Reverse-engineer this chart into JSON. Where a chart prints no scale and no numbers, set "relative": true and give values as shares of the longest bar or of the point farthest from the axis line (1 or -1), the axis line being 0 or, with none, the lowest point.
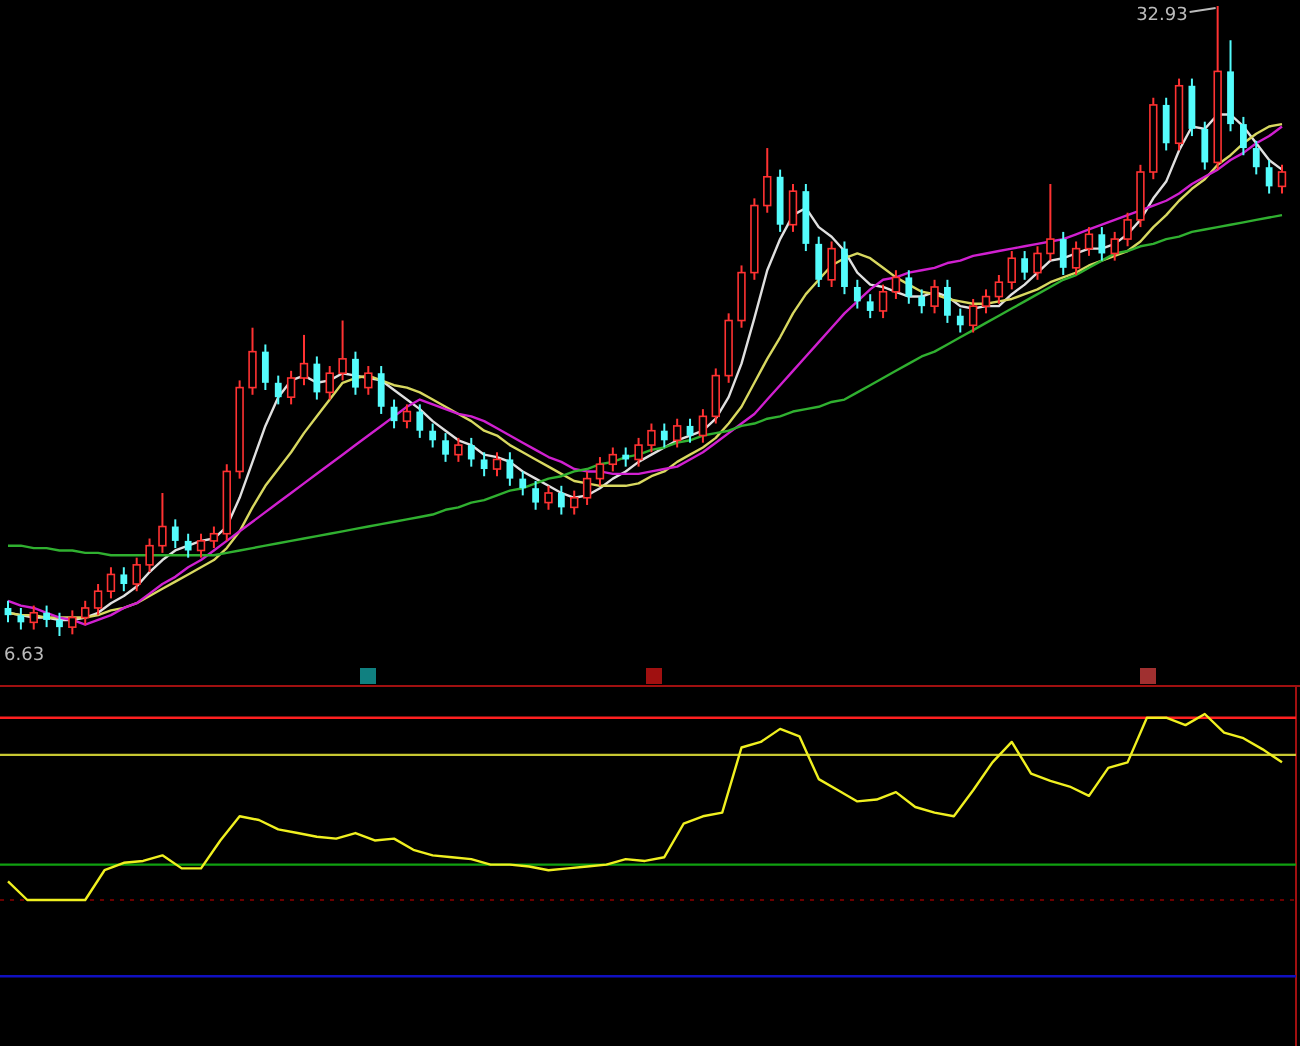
{
  "chart_data": [
    {
      "type": "candlestick",
      "categories": [
        null,
        null,
        null,
        null,
        null,
        null,
        null,
        null,
        null,
        null,
        null,
        null,
        null,
        null,
        null,
        null,
        null,
        null,
        null,
        null,
        null,
        null,
        null,
        null,
        null,
        null,
        null,
        null,
        null,
        null,
        null,
        null,
        null,
        null,
        null,
        null,
        null,
        null,
        null,
        null,
        null,
        null,
        null,
        null,
        null,
        null,
        null,
        null,
        null,
        null,
        null,
        null,
        null,
        null,
        null,
        null,
        null,
        null,
        null,
        null,
        null,
        null,
        null,
        null,
        null,
        null,
        null,
        null,
        null,
        null,
        null,
        null,
        null,
        null,
        null,
        null,
        null,
        null,
        null,
        null,
        null,
        null,
        null,
        null,
        null,
        null,
        null,
        null,
        null,
        null,
        null,
        null,
        null,
        null,
        null,
        null,
        null,
        null,
        null,
        null
      ],
      "ohlc": [
        [
          7.8,
          8.1,
          7.2,
          7.5
        ],
        [
          7.5,
          7.8,
          6.9,
          7.2
        ],
        [
          7.2,
          7.9,
          6.9,
          7.6
        ],
        [
          7.6,
          7.9,
          7.0,
          7.3
        ],
        [
          7.3,
          7.6,
          6.63,
          7.0
        ],
        [
          7.0,
          7.7,
          6.7,
          7.4
        ],
        [
          7.4,
          8.1,
          7.1,
          7.8
        ],
        [
          7.8,
          8.8,
          7.5,
          8.5
        ],
        [
          8.5,
          9.5,
          8.2,
          9.2
        ],
        [
          9.2,
          9.5,
          8.5,
          8.8
        ],
        [
          8.8,
          9.9,
          8.5,
          9.6
        ],
        [
          9.6,
          10.7,
          9.3,
          10.4
        ],
        [
          10.4,
          12.6,
          10.1,
          11.2
        ],
        [
          11.2,
          11.5,
          10.3,
          10.6
        ],
        [
          10.6,
          10.9,
          9.9,
          10.2
        ],
        [
          10.2,
          10.9,
          9.9,
          10.6
        ],
        [
          10.6,
          11.2,
          10.3,
          10.9
        ],
        [
          10.9,
          13.8,
          10.6,
          13.5
        ],
        [
          13.5,
          17.3,
          13.2,
          17.0
        ],
        [
          17.0,
          19.5,
          16.7,
          18.5
        ],
        [
          18.5,
          18.8,
          16.9,
          17.2
        ],
        [
          17.2,
          17.5,
          16.3,
          16.6
        ],
        [
          16.6,
          17.7,
          16.3,
          17.4
        ],
        [
          17.4,
          19.2,
          17.1,
          18.0
        ],
        [
          18.0,
          18.3,
          16.5,
          16.8
        ],
        [
          16.8,
          17.9,
          16.5,
          17.6
        ],
        [
          17.6,
          19.8,
          17.3,
          18.2
        ],
        [
          18.2,
          18.5,
          16.7,
          17.0
        ],
        [
          17.0,
          17.9,
          16.7,
          17.6
        ],
        [
          17.6,
          17.9,
          15.9,
          16.2
        ],
        [
          16.2,
          16.5,
          15.3,
          15.6
        ],
        [
          15.6,
          16.3,
          15.3,
          16.0
        ],
        [
          16.0,
          16.3,
          14.9,
          15.2
        ],
        [
          15.2,
          15.5,
          14.5,
          14.8
        ],
        [
          14.8,
          15.1,
          13.9,
          14.2
        ],
        [
          14.2,
          14.9,
          13.9,
          14.6
        ],
        [
          14.6,
          14.9,
          13.7,
          14.0
        ],
        [
          14.0,
          14.3,
          13.3,
          13.6
        ],
        [
          13.6,
          14.3,
          13.3,
          14.0
        ],
        [
          14.0,
          14.3,
          12.9,
          13.2
        ],
        [
          13.2,
          13.5,
          12.5,
          12.8
        ],
        [
          12.8,
          13.1,
          11.9,
          12.2
        ],
        [
          12.2,
          12.9,
          11.9,
          12.6
        ],
        [
          12.6,
          12.9,
          11.7,
          12.0
        ],
        [
          12.0,
          12.7,
          11.7,
          12.4
        ],
        [
          12.4,
          13.5,
          12.1,
          13.2
        ],
        [
          13.2,
          14.1,
          12.9,
          13.8
        ],
        [
          13.8,
          14.5,
          13.5,
          14.2
        ],
        [
          14.2,
          14.5,
          13.7,
          14.0
        ],
        [
          14.0,
          14.9,
          13.7,
          14.6
        ],
        [
          14.6,
          15.5,
          14.3,
          15.2
        ],
        [
          15.2,
          15.5,
          14.5,
          14.8
        ],
        [
          14.8,
          15.7,
          14.5,
          15.4
        ],
        [
          15.4,
          15.7,
          14.7,
          15.0
        ],
        [
          15.0,
          16.1,
          14.7,
          15.8
        ],
        [
          15.8,
          17.8,
          15.5,
          17.5
        ],
        [
          17.5,
          20.1,
          17.2,
          19.8
        ],
        [
          19.8,
          22.1,
          19.5,
          21.8
        ],
        [
          21.8,
          24.9,
          21.5,
          24.6
        ],
        [
          24.6,
          27.0,
          24.3,
          25.8
        ],
        [
          25.8,
          26.1,
          23.5,
          23.8
        ],
        [
          23.8,
          25.5,
          23.5,
          25.2
        ],
        [
          25.2,
          25.5,
          22.7,
          23.0
        ],
        [
          23.0,
          23.3,
          21.2,
          21.5
        ],
        [
          21.5,
          23.1,
          21.2,
          22.8
        ],
        [
          22.8,
          23.1,
          20.9,
          21.2
        ],
        [
          21.2,
          21.5,
          20.3,
          20.6
        ],
        [
          20.6,
          20.9,
          19.9,
          20.2
        ],
        [
          20.2,
          21.3,
          19.9,
          21.0
        ],
        [
          21.0,
          21.9,
          20.7,
          21.6
        ],
        [
          21.6,
          21.9,
          20.5,
          20.8
        ],
        [
          20.8,
          21.1,
          20.1,
          20.4
        ],
        [
          20.4,
          21.5,
          20.1,
          21.2
        ],
        [
          21.2,
          21.5,
          19.7,
          20.0
        ],
        [
          20.0,
          20.3,
          19.3,
          19.6
        ],
        [
          19.6,
          20.7,
          19.3,
          20.4
        ],
        [
          20.4,
          21.1,
          20.1,
          20.8
        ],
        [
          20.8,
          21.7,
          20.5,
          21.4
        ],
        [
          21.4,
          22.7,
          21.1,
          22.4
        ],
        [
          22.4,
          22.7,
          21.5,
          21.8
        ],
        [
          21.8,
          22.9,
          21.5,
          22.6
        ],
        [
          22.6,
          25.5,
          22.3,
          23.2
        ],
        [
          23.2,
          23.5,
          21.7,
          22.0
        ],
        [
          22.0,
          23.1,
          21.7,
          22.8
        ],
        [
          22.8,
          23.7,
          22.5,
          23.4
        ],
        [
          23.4,
          23.7,
          22.3,
          22.6
        ],
        [
          22.6,
          23.5,
          22.3,
          23.2
        ],
        [
          23.2,
          24.3,
          22.9,
          24.0
        ],
        [
          24.0,
          26.3,
          23.7,
          26.0
        ],
        [
          26.0,
          29.1,
          25.7,
          28.8
        ],
        [
          28.8,
          29.1,
          26.9,
          27.2
        ],
        [
          27.2,
          29.9,
          26.9,
          29.6
        ],
        [
          29.6,
          29.9,
          27.5,
          27.8
        ],
        [
          27.8,
          28.1,
          26.1,
          26.4
        ],
        [
          26.4,
          32.93,
          26.1,
          30.2
        ],
        [
          30.2,
          31.5,
          27.7,
          28.0
        ],
        [
          28.0,
          28.3,
          26.7,
          27.0
        ],
        [
          27.0,
          27.3,
          25.9,
          26.2
        ],
        [
          26.2,
          26.5,
          25.1,
          25.4
        ],
        [
          25.4,
          26.3,
          25.1,
          26.0
        ]
      ],
      "colors": [
        "#54fcfc",
        "#54fcfc",
        "#ff3232",
        "#54fcfc",
        "#54fcfc",
        "#ff3232",
        "#ff3232",
        "#ff3232",
        "#ff3232",
        "#54fcfc",
        "#ff3232",
        "#ff3232",
        "#ff3232",
        "#54fcfc",
        "#54fcfc",
        "#ff3232",
        "#ff3232",
        "#ff3232",
        "#ff3232",
        "#ff3232",
        "#54fcfc",
        "#54fcfc",
        "#ff3232",
        "#ff3232",
        "#54fcfc",
        "#ff3232",
        "#ff3232",
        "#54fcfc",
        "#ff3232",
        "#54fcfc",
        "#54fcfc",
        "#ff3232",
        "#54fcfc",
        "#54fcfc",
        "#54fcfc",
        "#ff3232",
        "#54fcfc",
        "#54fcfc",
        "#ff3232",
        "#54fcfc",
        "#54fcfc",
        "#54fcfc",
        "#ff3232",
        "#54fcfc",
        "#ff3232",
        "#ff3232",
        "#ff3232",
        "#ff3232",
        "#54fcfc",
        "#ff3232",
        "#ff3232",
        "#54fcfc",
        "#ff3232",
        "#54fcfc",
        "#ff3232",
        "#ff3232",
        "#ff3232",
        "#ff3232",
        "#ff3232",
        "#ff3232",
        "#54fcfc",
        "#ff3232",
        "#54fcfc",
        "#54fcfc",
        "#ff3232",
        "#54fcfc",
        "#54fcfc",
        "#54fcfc",
        "#ff3232",
        "#ff3232",
        "#54fcfc",
        "#54fcfc",
        "#ff3232",
        "#54fcfc",
        "#54fcfc",
        "#ff3232",
        "#ff3232",
        "#ff3232",
        "#ff3232",
        "#54fcfc",
        "#ff3232",
        "#ff3232",
        "#54fcfc",
        "#ff3232",
        "#ff3232",
        "#54fcfc",
        "#ff3232",
        "#ff3232",
        "#ff3232",
        "#ff3232",
        "#54fcfc",
        "#ff3232",
        "#54fcfc",
        "#54fcfc",
        "#ff3232",
        "#54fcfc",
        "#54fcfc",
        "#54fcfc",
        "#54fcfc",
        "#ff3232"
      ],
      "series": [
        {
          "type": "line",
          "color": "#e0e0e0",
          "values": [
            7.6,
            7.5,
            7.4,
            7.4,
            7.3,
            7.3,
            7.4,
            7.6,
            8.0,
            8.3,
            8.7,
            9.3,
            9.8,
            10.2,
            10.4,
            10.6,
            10.7,
            11.2,
            12.4,
            13.9,
            15.4,
            16.6,
            17.3,
            17.5,
            17.2,
            17.3,
            17.6,
            17.5,
            17.4,
            17.3,
            16.9,
            16.5,
            16.1,
            15.6,
            15.2,
            14.8,
            14.6,
            14.2,
            14.1,
            13.9,
            13.5,
            13.2,
            12.9,
            12.6,
            12.4,
            12.5,
            12.8,
            13.2,
            13.5,
            13.9,
            14.2,
            14.5,
            14.8,
            15.0,
            15.2,
            15.7,
            16.6,
            18.0,
            19.9,
            21.9,
            23.2,
            24.2,
            24.5,
            23.7,
            23.3,
            22.7,
            21.8,
            21.3,
            21.2,
            21.0,
            20.8,
            20.8,
            21.0,
            20.8,
            20.4,
            20.3,
            20.4,
            20.4,
            20.9,
            21.3,
            21.8,
            22.3,
            22.4,
            22.6,
            22.8,
            22.8,
            23.0,
            23.4,
            24.0,
            24.9,
            25.6,
            26.9,
            27.9,
            27.8,
            28.4,
            28.4,
            27.9,
            27.2,
            26.5,
            26.1
          ]
        },
        {
          "type": "line",
          "color": "#d8d860",
          "values": [
            7.6,
            7.5,
            7.5,
            7.4,
            7.4,
            7.4,
            7.4,
            7.5,
            7.7,
            7.8,
            8.0,
            8.3,
            8.6,
            8.9,
            9.2,
            9.5,
            9.8,
            10.3,
            11.0,
            12.0,
            12.9,
            13.6,
            14.3,
            15.1,
            15.8,
            16.5,
            17.2,
            17.4,
            17.5,
            17.3,
            17.1,
            17.0,
            16.8,
            16.5,
            16.2,
            15.9,
            15.6,
            15.2,
            15.0,
            14.6,
            14.3,
            14.0,
            13.7,
            13.4,
            13.1,
            13.0,
            12.9,
            12.9,
            12.9,
            13.0,
            13.3,
            13.5,
            13.9,
            14.2,
            14.5,
            14.9,
            15.5,
            16.2,
            17.2,
            18.2,
            19.1,
            20.1,
            20.9,
            21.5,
            22.1,
            22.4,
            22.6,
            22.4,
            22.0,
            21.6,
            21.3,
            21.0,
            20.9,
            20.7,
            20.6,
            20.5,
            20.5,
            20.6,
            20.7,
            20.9,
            21.1,
            21.4,
            21.6,
            21.8,
            22.1,
            22.3,
            22.5,
            22.7,
            23.1,
            23.7,
            24.2,
            24.8,
            25.3,
            25.7,
            26.3,
            26.7,
            27.2,
            27.6,
            27.9,
            28.0
          ]
        },
        {
          "type": "line",
          "color": "#d020d0",
          "values": [
            8.1,
            7.9,
            7.8,
            7.6,
            7.4,
            7.3,
            7.1,
            7.3,
            7.5,
            7.8,
            8.0,
            8.4,
            8.8,
            9.1,
            9.5,
            9.8,
            10.2,
            10.6,
            11.0,
            11.4,
            11.8,
            12.2,
            12.6,
            13.0,
            13.4,
            13.8,
            14.2,
            14.6,
            15.0,
            15.4,
            15.8,
            16.2,
            16.5,
            16.3,
            16.1,
            15.9,
            15.8,
            15.6,
            15.3,
            15.0,
            14.7,
            14.4,
            14.1,
            13.9,
            13.6,
            13.5,
            13.5,
            13.4,
            13.4,
            13.4,
            13.5,
            13.6,
            13.7,
            14.0,
            14.3,
            14.7,
            15.1,
            15.5,
            15.9,
            16.5,
            17.1,
            17.7,
            18.3,
            18.9,
            19.5,
            20.1,
            20.6,
            21.1,
            21.5,
            21.6,
            21.8,
            21.9,
            22.0,
            22.2,
            22.3,
            22.5,
            22.6,
            22.7,
            22.8,
            22.9,
            23.0,
            23.1,
            23.2,
            23.4,
            23.6,
            23.8,
            24.0,
            24.2,
            24.4,
            24.6,
            24.8,
            25.1,
            25.5,
            25.8,
            26.1,
            26.5,
            26.8,
            27.2,
            27.5,
            27.9
          ]
        },
        {
          "type": "line",
          "color": "#30b030",
          "values": [
            10.4,
            10.4,
            10.3,
            10.3,
            10.2,
            10.2,
            10.1,
            10.1,
            10.0,
            10.0,
            10.0,
            10.0,
            10.0,
            10.0,
            10.0,
            10.0,
            10.0,
            10.1,
            10.2,
            10.3,
            10.4,
            10.5,
            10.6,
            10.7,
            10.8,
            10.9,
            11.0,
            11.1,
            11.2,
            11.3,
            11.4,
            11.5,
            11.6,
            11.7,
            11.9,
            12.0,
            12.2,
            12.3,
            12.5,
            12.7,
            12.8,
            13.0,
            13.2,
            13.3,
            13.5,
            13.6,
            13.8,
            13.9,
            14.1,
            14.2,
            14.4,
            14.5,
            14.7,
            14.8,
            15.0,
            15.1,
            15.2,
            15.4,
            15.5,
            15.7,
            15.8,
            16.0,
            16.1,
            16.2,
            16.4,
            16.5,
            16.8,
            17.1,
            17.4,
            17.7,
            18.0,
            18.3,
            18.5,
            18.8,
            19.1,
            19.4,
            19.7,
            20.0,
            20.3,
            20.6,
            20.9,
            21.2,
            21.5,
            21.7,
            22.0,
            22.3,
            22.6,
            22.7,
            22.9,
            23.0,
            23.2,
            23.3,
            23.5,
            23.6,
            23.7,
            23.8,
            23.9,
            24.0,
            24.1,
            24.2
          ]
        }
      ],
      "annotations": [
        "32.93",
        "6.63"
      ]
    },
    {
      "type": "line",
      "relative": true,
      "color": "#f0f020",
      "categories": [
        null,
        null,
        null,
        null,
        null,
        null,
        null,
        null,
        null,
        null,
        null,
        null,
        null,
        null,
        null,
        null,
        null,
        null,
        null,
        null,
        null,
        null,
        null,
        null,
        null,
        null,
        null,
        null,
        null,
        null,
        null,
        null,
        null,
        null,
        null,
        null,
        null,
        null,
        null,
        null,
        null,
        null,
        null,
        null,
        null,
        null,
        null,
        null,
        null,
        null,
        null,
        null,
        null,
        null,
        null,
        null,
        null,
        null,
        null,
        null,
        null,
        null,
        null,
        null,
        null,
        null,
        null
      ],
      "values": [
        0.1,
        0,
        0,
        0,
        0,
        0.16,
        0.2,
        0.21,
        0.24,
        0.17,
        0.17,
        0.32,
        0.45,
        0.43,
        0.38,
        0.36,
        0.34,
        0.33,
        0.36,
        0.32,
        0.33,
        0.27,
        0.24,
        0.23,
        0.22,
        0.19,
        0.19,
        0.18,
        0.16,
        0.17,
        0.18,
        0.19,
        0.22,
        0.21,
        0.23,
        0.41,
        0.45,
        0.47,
        0.82,
        0.85,
        0.92,
        0.88,
        0.65,
        0.59,
        0.53,
        0.54,
        0.58,
        0.5,
        0.47,
        0.45,
        0.59,
        0.74,
        0.85,
        0.68,
        0.64,
        0.61,
        0.56,
        0.71,
        0.74,
        0.98,
        0.98,
        0.94,
        1,
        0.9,
        0.87,
        0.81,
        0.74
      ],
      "ref_lines": [
        {
          "axis": "y",
          "value": 0.98,
          "color": "#ff2020"
        },
        {
          "axis": "y",
          "value": 0.78,
          "color": "#c8c832"
        },
        {
          "axis": "y",
          "value": 0.19,
          "color": "#10a010"
        },
        {
          "axis": "y",
          "value": -0.41,
          "color": "#1010c0"
        }
      ]
    }
  ]
}
